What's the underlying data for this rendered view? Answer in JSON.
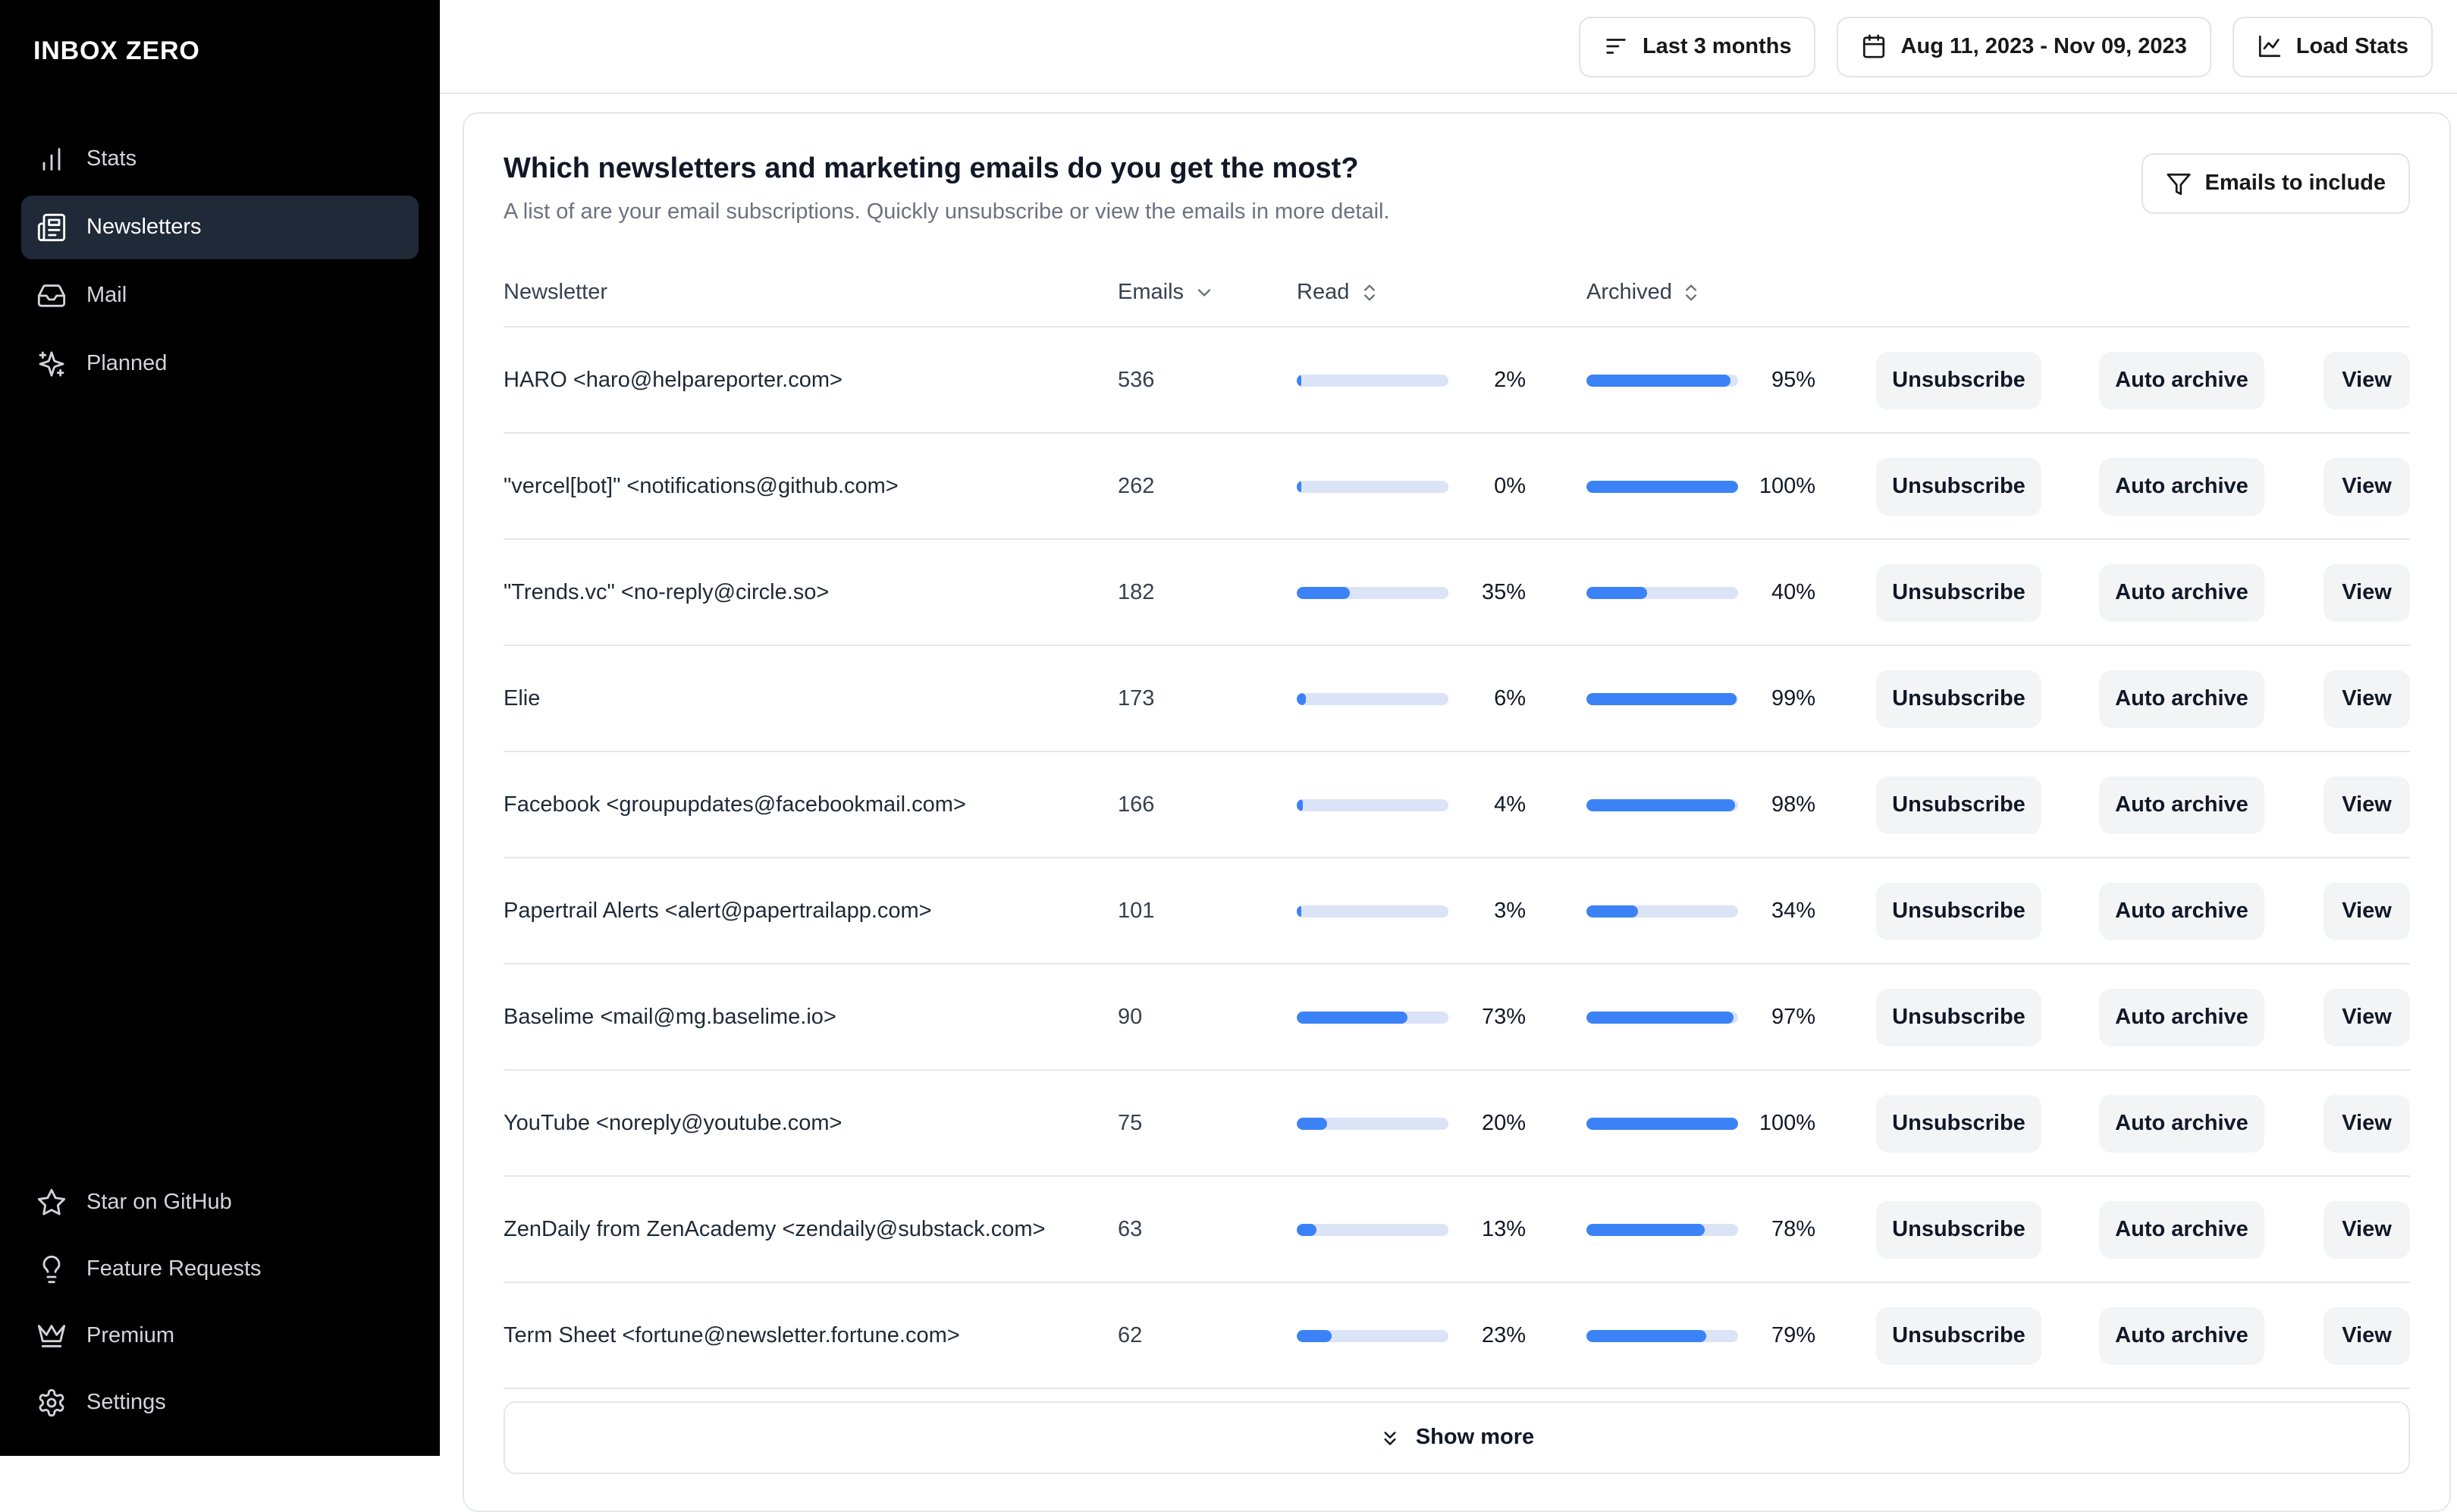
{
  "brand": {
    "logo": "INBOX ZERO"
  },
  "sidebar": {
    "nav": [
      {
        "label": "Stats",
        "icon": "bar-chart-icon",
        "active": false
      },
      {
        "label": "Newsletters",
        "icon": "newspaper-icon",
        "active": true
      },
      {
        "label": "Mail",
        "icon": "inbox-icon",
        "active": false
      },
      {
        "label": "Planned",
        "icon": "sparkles-icon",
        "active": false
      }
    ],
    "footer": [
      {
        "label": "Star on GitHub",
        "icon": "star-icon"
      },
      {
        "label": "Feature Requests",
        "icon": "lightbulb-icon"
      },
      {
        "label": "Premium",
        "icon": "crown-icon"
      },
      {
        "label": "Settings",
        "icon": "gear-icon"
      }
    ]
  },
  "topbar": {
    "period_button": "Last 3 months",
    "date_range_button": "Aug 11, 2023 - Nov 09, 2023",
    "load_stats_button": "Load Stats"
  },
  "newsletters_card": {
    "title": "Which newsletters and marketing emails do you get the most?",
    "subtitle": "A list of are your email subscriptions. Quickly unsubscribe or view the emails in more detail.",
    "emails_to_include_button": "Emails to include",
    "table": {
      "columns": [
        "Newsletter",
        "Emails",
        "Read",
        "Archived"
      ],
      "rows": [
        {
          "name": "HARO <haro@helpareporter.com>",
          "emails": "536",
          "read_pct": 2,
          "archived_pct": 95
        },
        {
          "name": "\"vercel[bot]\" <notifications@github.com>",
          "emails": "262",
          "read_pct": 0,
          "archived_pct": 100
        },
        {
          "name": "\"Trends.vc\" <no-reply@circle.so>",
          "emails": "182",
          "read_pct": 35,
          "archived_pct": 40
        },
        {
          "name": "Elie",
          "emails": "173",
          "read_pct": 6,
          "archived_pct": 99
        },
        {
          "name": "Facebook <groupupdates@facebookmail.com>",
          "emails": "166",
          "read_pct": 4,
          "archived_pct": 98
        },
        {
          "name": "Papertrail Alerts <alert@papertrailapp.com>",
          "emails": "101",
          "read_pct": 3,
          "archived_pct": 34
        },
        {
          "name": "Baselime <mail@mg.baselime.io>",
          "emails": "90",
          "read_pct": 73,
          "archived_pct": 97
        },
        {
          "name": "YouTube <noreply@youtube.com>",
          "emails": "75",
          "read_pct": 20,
          "archived_pct": 100
        },
        {
          "name": "ZenDaily from ZenAcademy <zendaily@substack.com>",
          "emails": "63",
          "read_pct": 13,
          "archived_pct": 78
        },
        {
          "name": "Term Sheet <fortune@newsletter.fortune.com>",
          "emails": "62",
          "read_pct": 23,
          "archived_pct": 79
        }
      ]
    },
    "actions": {
      "unsubscribe": "Unsubscribe",
      "auto_archive": "Auto archive",
      "view": "View"
    },
    "show_more_button": "Show more"
  },
  "colors": {
    "sidebar_bg": "#000000",
    "active_item_bg": "#1f2937",
    "accent_blue": "#3b82f6",
    "progress_track": "#dbe3f6",
    "border": "#e5e7eb"
  }
}
